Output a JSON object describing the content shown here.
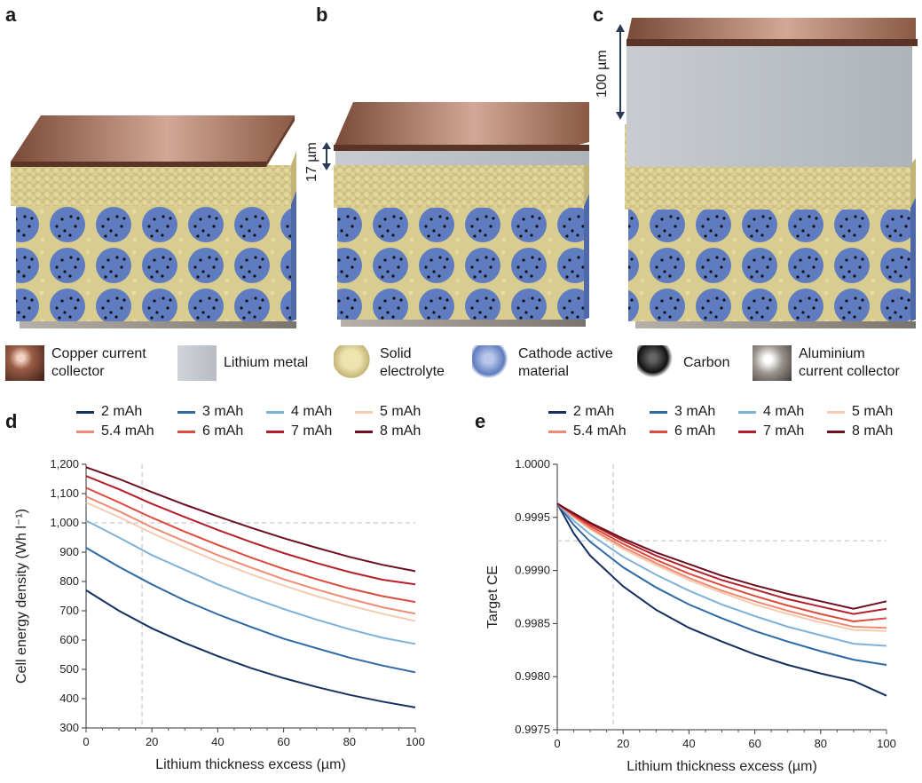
{
  "panels": {
    "a": "a",
    "b": "b",
    "c": "c",
    "d": "d",
    "e": "e"
  },
  "dimensions": {
    "b_thickness": "17 µm",
    "c_thickness": "100 µm"
  },
  "materials_legend": [
    {
      "label": "Copper current\ncollector",
      "icon": "copper-swatch",
      "color": "#a0654a"
    },
    {
      "label": "Lithium metal",
      "icon": "lithium-swatch",
      "color": "#c9ced3"
    },
    {
      "label": "Solid\nelectrolyte",
      "icon": "electrolyte-swatch",
      "color": "#d6c98e"
    },
    {
      "label": "Cathode active\nmaterial",
      "icon": "cathode-swatch",
      "color": "#6e86c2"
    },
    {
      "label": "Carbon",
      "icon": "carbon-swatch",
      "color": "#111111"
    },
    {
      "label": "Aluminium\ncurrent collector",
      "icon": "aluminium-swatch",
      "color": "#8a8580"
    }
  ],
  "series_colors": [
    "#14305f",
    "#2e69a6",
    "#7fb2d8",
    "#f5cbb2",
    "#f08a72",
    "#dd4b3c",
    "#b31f2a",
    "#6d0f1c"
  ],
  "chart_data": [
    {
      "type": "line",
      "xlabel": "Lithium thickness excess (µm)",
      "ylabel": "Cell energy density (Wh l⁻¹)",
      "xlim": [
        0,
        100
      ],
      "ylim": [
        300,
        1200
      ],
      "xticks": [
        "0",
        "20",
        "40",
        "60",
        "80",
        "100"
      ],
      "yticks": [
        "300",
        "400",
        "500",
        "600",
        "700",
        "800",
        "900",
        "1,000",
        "1,100",
        "1,200"
      ],
      "reference_lines": {
        "x": 17,
        "y": 1000
      },
      "x": [
        0,
        10,
        20,
        30,
        40,
        50,
        60,
        70,
        80,
        90,
        100
      ],
      "series": [
        {
          "name": "2 mAh",
          "values": [
            770,
            700,
            640,
            590,
            545,
            505,
            470,
            440,
            413,
            390,
            370
          ]
        },
        {
          "name": "3 mAh",
          "values": [
            915,
            850,
            790,
            735,
            688,
            645,
            605,
            572,
            540,
            513,
            490
          ]
        },
        {
          "name": "4 mAh",
          "values": [
            1008,
            950,
            890,
            840,
            790,
            746,
            706,
            670,
            637,
            608,
            587
          ]
        },
        {
          "name": "5 mAh",
          "values": [
            1070,
            1020,
            965,
            915,
            868,
            825,
            786,
            750,
            718,
            690,
            665
          ]
        },
        {
          "name": "5.4 mAh",
          "values": [
            1090,
            1040,
            985,
            937,
            890,
            848,
            808,
            773,
            741,
            712,
            690
          ]
        },
        {
          "name": "6 mAh",
          "values": [
            1120,
            1070,
            1018,
            970,
            925,
            882,
            843,
            808,
            776,
            750,
            730
          ]
        },
        {
          "name": "7 mAh",
          "values": [
            1160,
            1115,
            1065,
            1020,
            976,
            935,
            897,
            863,
            832,
            806,
            790
          ]
        },
        {
          "name": "8 mAh",
          "values": [
            1190,
            1150,
            1105,
            1062,
            1022,
            984,
            948,
            915,
            884,
            857,
            835
          ]
        }
      ],
      "legend_location": "top"
    },
    {
      "type": "line",
      "xlabel": "Lithium thickness excess (µm)",
      "ylabel": "Target CE",
      "xlim": [
        0,
        100
      ],
      "ylim": [
        0.9975,
        1.0
      ],
      "xticks": [
        "0",
        "20",
        "40",
        "60",
        "80",
        "100"
      ],
      "yticks": [
        "0.9975",
        "0.9980",
        "0.9985",
        "0.9990",
        "0.9995",
        "1.0000"
      ],
      "reference_lines": {
        "x": 17,
        "y": 0.99928
      },
      "x": [
        0,
        5,
        10,
        20,
        30,
        40,
        50,
        60,
        70,
        80,
        90,
        100
      ],
      "series": [
        {
          "name": "2 mAh",
          "values": [
            0.99963,
            0.99935,
            0.99914,
            0.99885,
            0.99863,
            0.99846,
            0.99833,
            0.99821,
            0.99811,
            0.99803,
            0.99796,
            0.99782
          ]
        },
        {
          "name": "3 mAh",
          "values": [
            0.99963,
            0.99943,
            0.99927,
            0.99903,
            0.99884,
            0.99868,
            0.99855,
            0.99843,
            0.99833,
            0.99824,
            0.99816,
            0.99811
          ]
        },
        {
          "name": "4 mAh",
          "values": [
            0.99963,
            0.99947,
            0.99934,
            0.99913,
            0.99896,
            0.99881,
            0.99868,
            0.99857,
            0.99847,
            0.99839,
            0.99831,
            0.99829
          ]
        },
        {
          "name": "5 mAh",
          "values": [
            0.99963,
            0.9995,
            0.99939,
            0.9992,
            0.99905,
            0.99891,
            0.99879,
            0.99868,
            0.99859,
            0.99851,
            0.99844,
            0.99843
          ]
        },
        {
          "name": "5.4 mAh",
          "values": [
            0.99963,
            0.99951,
            0.9994,
            0.99922,
            0.99907,
            0.99893,
            0.99881,
            0.99871,
            0.99862,
            0.99854,
            0.99847,
            0.99846
          ]
        },
        {
          "name": "6 mAh",
          "values": [
            0.99963,
            0.99952,
            0.99942,
            0.99925,
            0.9991,
            0.99897,
            0.99886,
            0.99876,
            0.99867,
            0.99859,
            0.99852,
            0.99855
          ]
        },
        {
          "name": "7 mAh",
          "values": [
            0.99963,
            0.99953,
            0.99944,
            0.99928,
            0.99914,
            0.99902,
            0.99891,
            0.99882,
            0.99873,
            0.99866,
            0.99859,
            0.99864
          ]
        },
        {
          "name": "8 mAh",
          "values": [
            0.99963,
            0.99954,
            0.99945,
            0.9993,
            0.99917,
            0.99906,
            0.99895,
            0.99886,
            0.99878,
            0.99871,
            0.99864,
            0.99871
          ]
        }
      ],
      "legend_location": "top"
    }
  ]
}
